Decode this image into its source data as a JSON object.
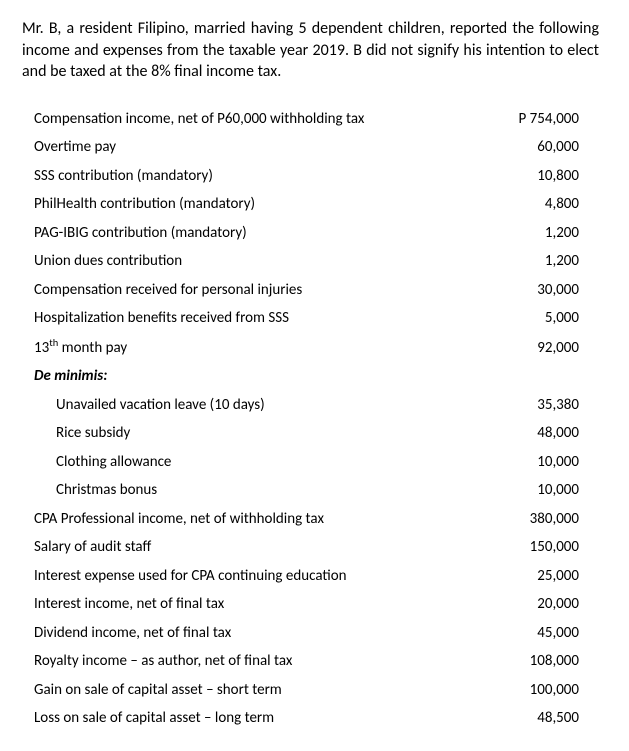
{
  "intro": "Mr. B, a resident Filipino, married having 5 dependent children, reported the following income and expenses from the taxable year 2019.  B did not signify his intention to elect and be taxed at the 8% final income tax.",
  "section_heading": "De minimis:",
  "rows_a": [
    {
      "label": "Compensation income, net of P60,000 withholding tax",
      "value": "P 754,000"
    },
    {
      "label": "Overtime pay",
      "value": "60,000"
    },
    {
      "label": "SSS contribution (mandatory)",
      "value": "10,800"
    },
    {
      "label": "PhilHealth contribution (mandatory)",
      "value": "4,800"
    },
    {
      "label": "PAG-IBIG contribution (mandatory)",
      "value": "1,200"
    },
    {
      "label": "Union dues contribution",
      "value": "1,200"
    },
    {
      "label": "Compensation received for personal injuries",
      "value": "30,000"
    },
    {
      "label": "Hospitalization benefits received from SSS",
      "value": "5,000"
    }
  ],
  "row_13th": {
    "label_pre": "13",
    "label_sup": "th",
    "label_post": " month pay",
    "value": "92,000"
  },
  "rows_indent": [
    {
      "label": "Unavailed vacation leave (10 days)",
      "value": "35,380"
    },
    {
      "label": "Rice subsidy",
      "value": "48,000"
    },
    {
      "label": "Clothing allowance",
      "value": "10,000"
    },
    {
      "label": "Christmas bonus",
      "value": "10,000"
    }
  ],
  "rows_b": [
    {
      "label": "CPA Professional income, net of withholding tax",
      "value": "380,000"
    },
    {
      "label": "Salary of audit staff",
      "value": "150,000"
    },
    {
      "label": "Interest expense used for CPA continuing education",
      "value": "25,000"
    },
    {
      "label": "Interest income, net of final tax",
      "value": "20,000"
    },
    {
      "label": "Dividend income, net of final tax",
      "value": "45,000"
    },
    {
      "label": "Royalty income – as author, net of final tax",
      "value": "108,000"
    },
    {
      "label": "Gain on sale of capital asset – short term",
      "value": "100,000"
    },
    {
      "label": "Loss on sale of capital asset – long term",
      "value": "48,500"
    }
  ]
}
